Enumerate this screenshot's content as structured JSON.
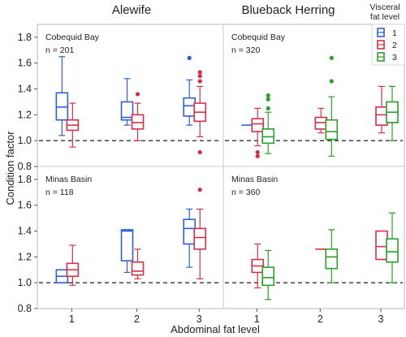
{
  "chart_data": {
    "type": "box",
    "column_titles": [
      "Alewife",
      "Blueback Herring"
    ],
    "xlabel": "Abdominal fat level",
    "ylabel": "Condition factor",
    "categories": [
      "1",
      "2",
      "3"
    ],
    "ylim": [
      0.8,
      1.9
    ],
    "y_ticks": [
      "0.8",
      "1.0",
      "1.2",
      "1.4",
      "1.6",
      "1.8"
    ],
    "reference_line": 1.0,
    "legend": {
      "title_line1": "Visceral",
      "title_line2": "fat level",
      "entries": [
        {
          "label": "1",
          "color": "#2e5fd6"
        },
        {
          "label": "2",
          "color": "#d62f4a"
        },
        {
          "label": "3",
          "color": "#2aa02a"
        }
      ]
    },
    "panels": [
      {
        "column": 0,
        "row": 0,
        "location": "Cobequid Bay",
        "n_label": "n = 201",
        "boxes": [
          {
            "cat": 0,
            "series": 0,
            "wl": 1.04,
            "q1": 1.16,
            "med": 1.26,
            "q3": 1.37,
            "wh": 1.65,
            "outliers": []
          },
          {
            "cat": 0,
            "series": 1,
            "wl": 0.95,
            "q1": 1.08,
            "med": 1.12,
            "q3": 1.16,
            "wh": 1.29,
            "outliers": []
          },
          {
            "cat": 1,
            "series": 0,
            "wl": 1.12,
            "q1": 1.16,
            "med": 1.18,
            "q3": 1.3,
            "wh": 1.48,
            "outliers": []
          },
          {
            "cat": 1,
            "series": 1,
            "wl": 1.0,
            "q1": 1.09,
            "med": 1.14,
            "q3": 1.2,
            "wh": 1.29,
            "outliers": [
              1.36
            ]
          },
          {
            "cat": 2,
            "series": 0,
            "wl": 1.12,
            "q1": 1.19,
            "med": 1.27,
            "q3": 1.33,
            "wh": 1.47,
            "outliers": [
              1.64
            ]
          },
          {
            "cat": 2,
            "series": 1,
            "wl": 1.03,
            "q1": 1.15,
            "med": 1.22,
            "q3": 1.29,
            "wh": 1.42,
            "outliers": [
              0.91,
              1.46,
              1.5,
              1.53
            ]
          }
        ]
      },
      {
        "column": 1,
        "row": 0,
        "location": "Cobequid Bay",
        "n_label": "n = 320",
        "boxes": [
          {
            "cat": 0,
            "series": 0,
            "wl": 1.12,
            "q1": 1.12,
            "med": 1.12,
            "q3": 1.12,
            "wh": 1.12,
            "outliers": []
          },
          {
            "cat": 0,
            "series": 1,
            "wl": 0.96,
            "q1": 1.07,
            "med": 1.13,
            "q3": 1.17,
            "wh": 1.25,
            "outliers": [
              0.88,
              0.91
            ]
          },
          {
            "cat": 0,
            "series": 2,
            "wl": 0.9,
            "q1": 0.98,
            "med": 1.03,
            "q3": 1.09,
            "wh": 1.22,
            "outliers": [
              1.25,
              1.32,
              1.35
            ]
          },
          {
            "cat": 1,
            "series": 1,
            "wl": 1.06,
            "q1": 1.09,
            "med": 1.14,
            "q3": 1.18,
            "wh": 1.25,
            "outliers": []
          },
          {
            "cat": 1,
            "series": 2,
            "wl": 0.88,
            "q1": 1.01,
            "med": 1.07,
            "q3": 1.16,
            "wh": 1.34,
            "outliers": [
              1.46,
              1.64
            ]
          },
          {
            "cat": 2,
            "series": 1,
            "wl": 1.06,
            "q1": 1.12,
            "med": 1.2,
            "q3": 1.26,
            "wh": 1.42,
            "outliers": []
          },
          {
            "cat": 2,
            "series": 2,
            "wl": 1.0,
            "q1": 1.14,
            "med": 1.22,
            "q3": 1.3,
            "wh": 1.42,
            "outliers": []
          }
        ]
      },
      {
        "column": 0,
        "row": 1,
        "location": "Minas Basin",
        "n_label": "n = 118",
        "boxes": [
          {
            "cat": 0,
            "series": 0,
            "wl": 1.0,
            "q1": 1.0,
            "med": 1.05,
            "q3": 1.1,
            "wh": 1.1,
            "outliers": []
          },
          {
            "cat": 0,
            "series": 1,
            "wl": 0.98,
            "q1": 1.05,
            "med": 1.1,
            "q3": 1.15,
            "wh": 1.29,
            "outliers": []
          },
          {
            "cat": 1,
            "series": 0,
            "wl": 1.08,
            "q1": 1.17,
            "med": 1.4,
            "q3": 1.41,
            "wh": 1.41,
            "outliers": []
          },
          {
            "cat": 1,
            "series": 1,
            "wl": 1.03,
            "q1": 1.06,
            "med": 1.09,
            "q3": 1.16,
            "wh": 1.26,
            "outliers": []
          },
          {
            "cat": 2,
            "series": 0,
            "wl": 1.12,
            "q1": 1.3,
            "med": 1.42,
            "q3": 1.49,
            "wh": 1.57,
            "outliers": []
          },
          {
            "cat": 2,
            "series": 1,
            "wl": 1.03,
            "q1": 1.26,
            "med": 1.35,
            "q3": 1.42,
            "wh": 1.57,
            "outliers": [
              1.72
            ]
          }
        ]
      },
      {
        "column": 1,
        "row": 1,
        "location": "Minas Basin",
        "n_label": "n = 360",
        "boxes": [
          {
            "cat": 0,
            "series": 1,
            "wl": 0.96,
            "q1": 1.08,
            "med": 1.13,
            "q3": 1.18,
            "wh": 1.3,
            "outliers": []
          },
          {
            "cat": 0,
            "series": 2,
            "wl": 0.87,
            "q1": 0.98,
            "med": 1.04,
            "q3": 1.12,
            "wh": 1.25,
            "outliers": []
          },
          {
            "cat": 1,
            "series": 1,
            "wl": 1.26,
            "q1": 1.26,
            "med": 1.26,
            "q3": 1.26,
            "wh": 1.26,
            "outliers": []
          },
          {
            "cat": 1,
            "series": 2,
            "wl": 1.0,
            "q1": 1.11,
            "med": 1.2,
            "q3": 1.26,
            "wh": 1.41,
            "outliers": []
          },
          {
            "cat": 2,
            "series": 1,
            "wl": 1.18,
            "q1": 1.18,
            "med": 1.28,
            "q3": 1.4,
            "wh": 1.4,
            "outliers": []
          },
          {
            "cat": 2,
            "series": 2,
            "wl": 1.0,
            "q1": 1.16,
            "med": 1.24,
            "q3": 1.34,
            "wh": 1.54,
            "outliers": []
          }
        ]
      }
    ]
  }
}
